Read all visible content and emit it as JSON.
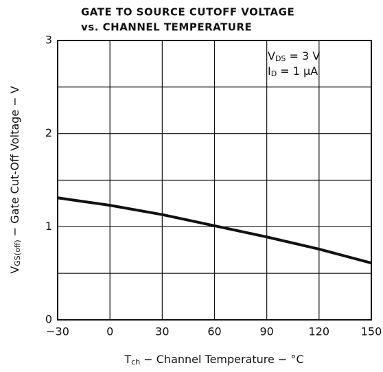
{
  "chart_data": {
    "type": "line",
    "title": [
      "GATE TO SOURCE CUTOFF VOLTAGE",
      "vs. CHANNEL TEMPERATURE"
    ],
    "y_label": {
      "main": "V",
      "sub": "GS(off)",
      "rest": " − Gate Cut-Off Voltage − V"
    },
    "x_label": {
      "main": "T",
      "sub": "ch",
      "rest": " − Channel Temperature − °C"
    },
    "annotations": [
      {
        "main": "V",
        "sub": "DS",
        "rest": " = 3 V"
      },
      {
        "main": "I",
        "sub": "D",
        "rest": " = 1 μA"
      }
    ],
    "x": [
      -30,
      0,
      30,
      60,
      90,
      120,
      150
    ],
    "series": [
      {
        "color": "#111111",
        "values": [
          1.31,
          1.23,
          1.13,
          1.01,
          0.89,
          0.76,
          0.61
        ]
      }
    ],
    "xlim": [
      -30,
      150
    ],
    "xticks": [
      {
        "value": -30,
        "label": "−30"
      },
      0,
      30,
      60,
      90,
      120,
      150
    ],
    "ylim": [
      0,
      3
    ],
    "yticks": [
      0,
      1,
      2,
      3
    ],
    "y_minor_grid": [
      0.5,
      1.5,
      2.5
    ],
    "grid": true
  }
}
